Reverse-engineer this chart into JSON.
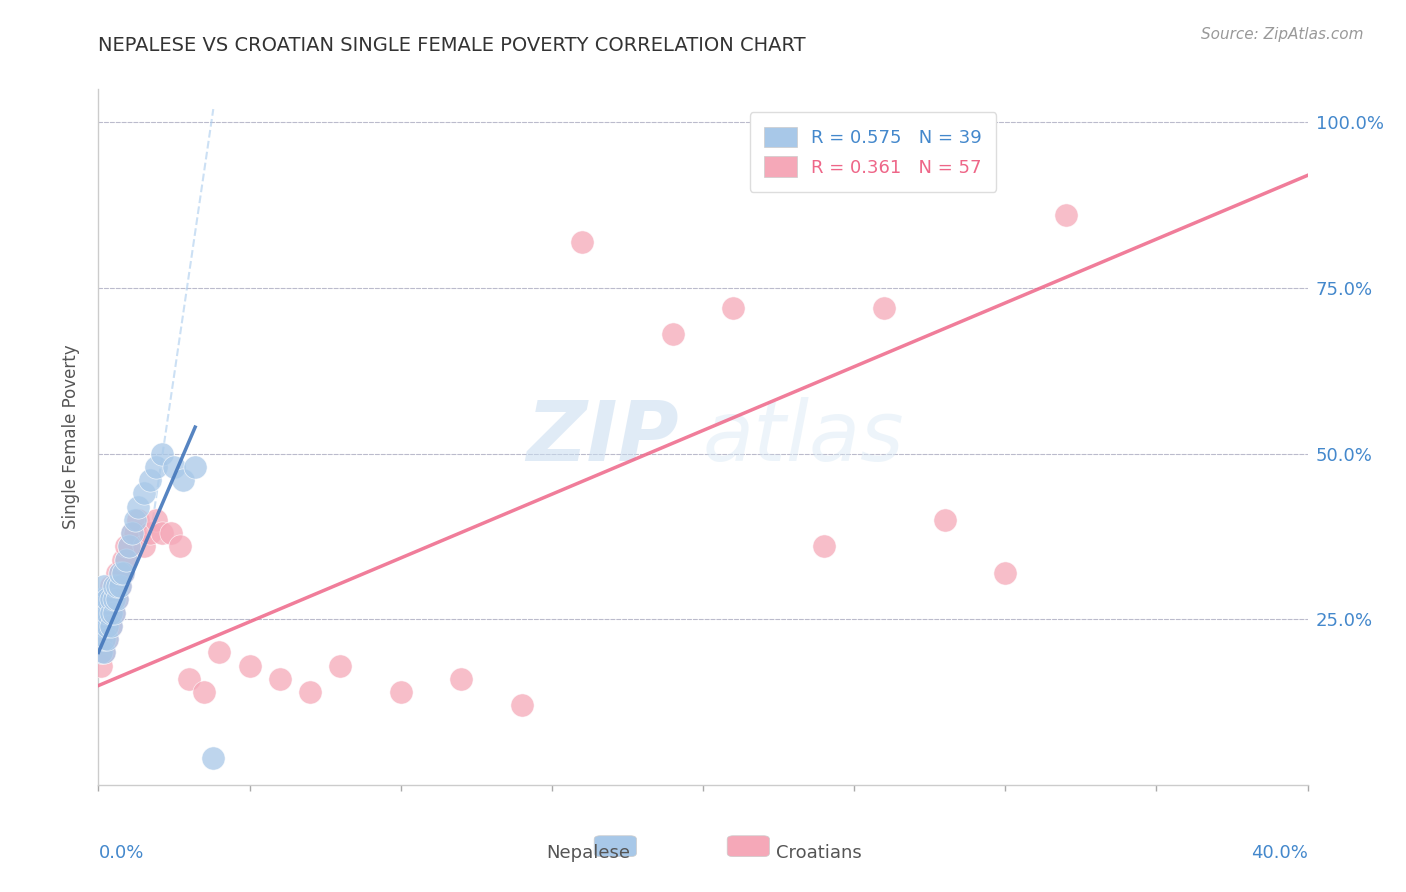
{
  "title": "NEPALESE VS CROATIAN SINGLE FEMALE POVERTY CORRELATION CHART",
  "source": "Source: ZipAtlas.com",
  "ylabel": "Single Female Poverty",
  "xlim": [
    0.0,
    0.4
  ],
  "ylim": [
    0.0,
    1.05
  ],
  "nepalese_color": "#A8C8E8",
  "croatian_color": "#F5A8B8",
  "nepalese_line_color": "#4477BB",
  "croatian_line_color": "#EE6688",
  "legend_r_nepalese": "R = 0.575",
  "legend_n_nepalese": "N = 39",
  "legend_r_croatian": "R = 0.361",
  "legend_n_croatian": "N = 57",
  "watermark_zip": "ZIP",
  "watermark_atlas": "atlas",
  "axis_label_color": "#4488CC",
  "grid_color": "#BBBBCC",
  "title_color": "#333333",
  "background_color": "#FFFFFF",
  "nepalese_x": [
    0.001,
    0.001,
    0.001,
    0.001,
    0.001,
    0.002,
    0.002,
    0.002,
    0.002,
    0.002,
    0.002,
    0.003,
    0.003,
    0.003,
    0.003,
    0.004,
    0.004,
    0.004,
    0.005,
    0.005,
    0.005,
    0.006,
    0.006,
    0.007,
    0.007,
    0.008,
    0.009,
    0.01,
    0.011,
    0.012,
    0.013,
    0.015,
    0.017,
    0.019,
    0.021,
    0.025,
    0.028,
    0.032,
    0.038
  ],
  "nepalese_y": [
    0.2,
    0.22,
    0.24,
    0.26,
    0.28,
    0.2,
    0.22,
    0.24,
    0.26,
    0.28,
    0.3,
    0.22,
    0.24,
    0.26,
    0.28,
    0.24,
    0.26,
    0.28,
    0.26,
    0.28,
    0.3,
    0.28,
    0.3,
    0.3,
    0.32,
    0.32,
    0.34,
    0.36,
    0.38,
    0.4,
    0.42,
    0.44,
    0.46,
    0.48,
    0.5,
    0.48,
    0.46,
    0.48,
    0.04
  ],
  "croatian_x": [
    0.001,
    0.001,
    0.001,
    0.001,
    0.002,
    0.002,
    0.002,
    0.002,
    0.002,
    0.003,
    0.003,
    0.003,
    0.003,
    0.004,
    0.004,
    0.004,
    0.004,
    0.005,
    0.005,
    0.005,
    0.006,
    0.006,
    0.006,
    0.007,
    0.007,
    0.008,
    0.008,
    0.009,
    0.009,
    0.01,
    0.011,
    0.012,
    0.013,
    0.015,
    0.017,
    0.019,
    0.021,
    0.024,
    0.027,
    0.03,
    0.035,
    0.04,
    0.05,
    0.06,
    0.07,
    0.08,
    0.1,
    0.12,
    0.14,
    0.16,
    0.19,
    0.21,
    0.24,
    0.26,
    0.28,
    0.3,
    0.32
  ],
  "croatian_y": [
    0.18,
    0.2,
    0.22,
    0.24,
    0.2,
    0.22,
    0.24,
    0.26,
    0.28,
    0.22,
    0.24,
    0.26,
    0.28,
    0.24,
    0.26,
    0.28,
    0.3,
    0.26,
    0.28,
    0.3,
    0.28,
    0.3,
    0.32,
    0.3,
    0.32,
    0.32,
    0.34,
    0.34,
    0.36,
    0.36,
    0.38,
    0.38,
    0.4,
    0.36,
    0.38,
    0.4,
    0.38,
    0.38,
    0.36,
    0.16,
    0.14,
    0.2,
    0.18,
    0.16,
    0.14,
    0.18,
    0.14,
    0.16,
    0.12,
    0.82,
    0.68,
    0.72,
    0.36,
    0.72,
    0.4,
    0.32,
    0.86
  ],
  "nep_line_x0": 0.0,
  "nep_line_y0": 0.2,
  "nep_line_x1": 0.032,
  "nep_line_y1": 0.54,
  "cro_line_x0": 0.0,
  "cro_line_y0": 0.15,
  "cro_line_x1": 0.4,
  "cro_line_y1": 0.92
}
